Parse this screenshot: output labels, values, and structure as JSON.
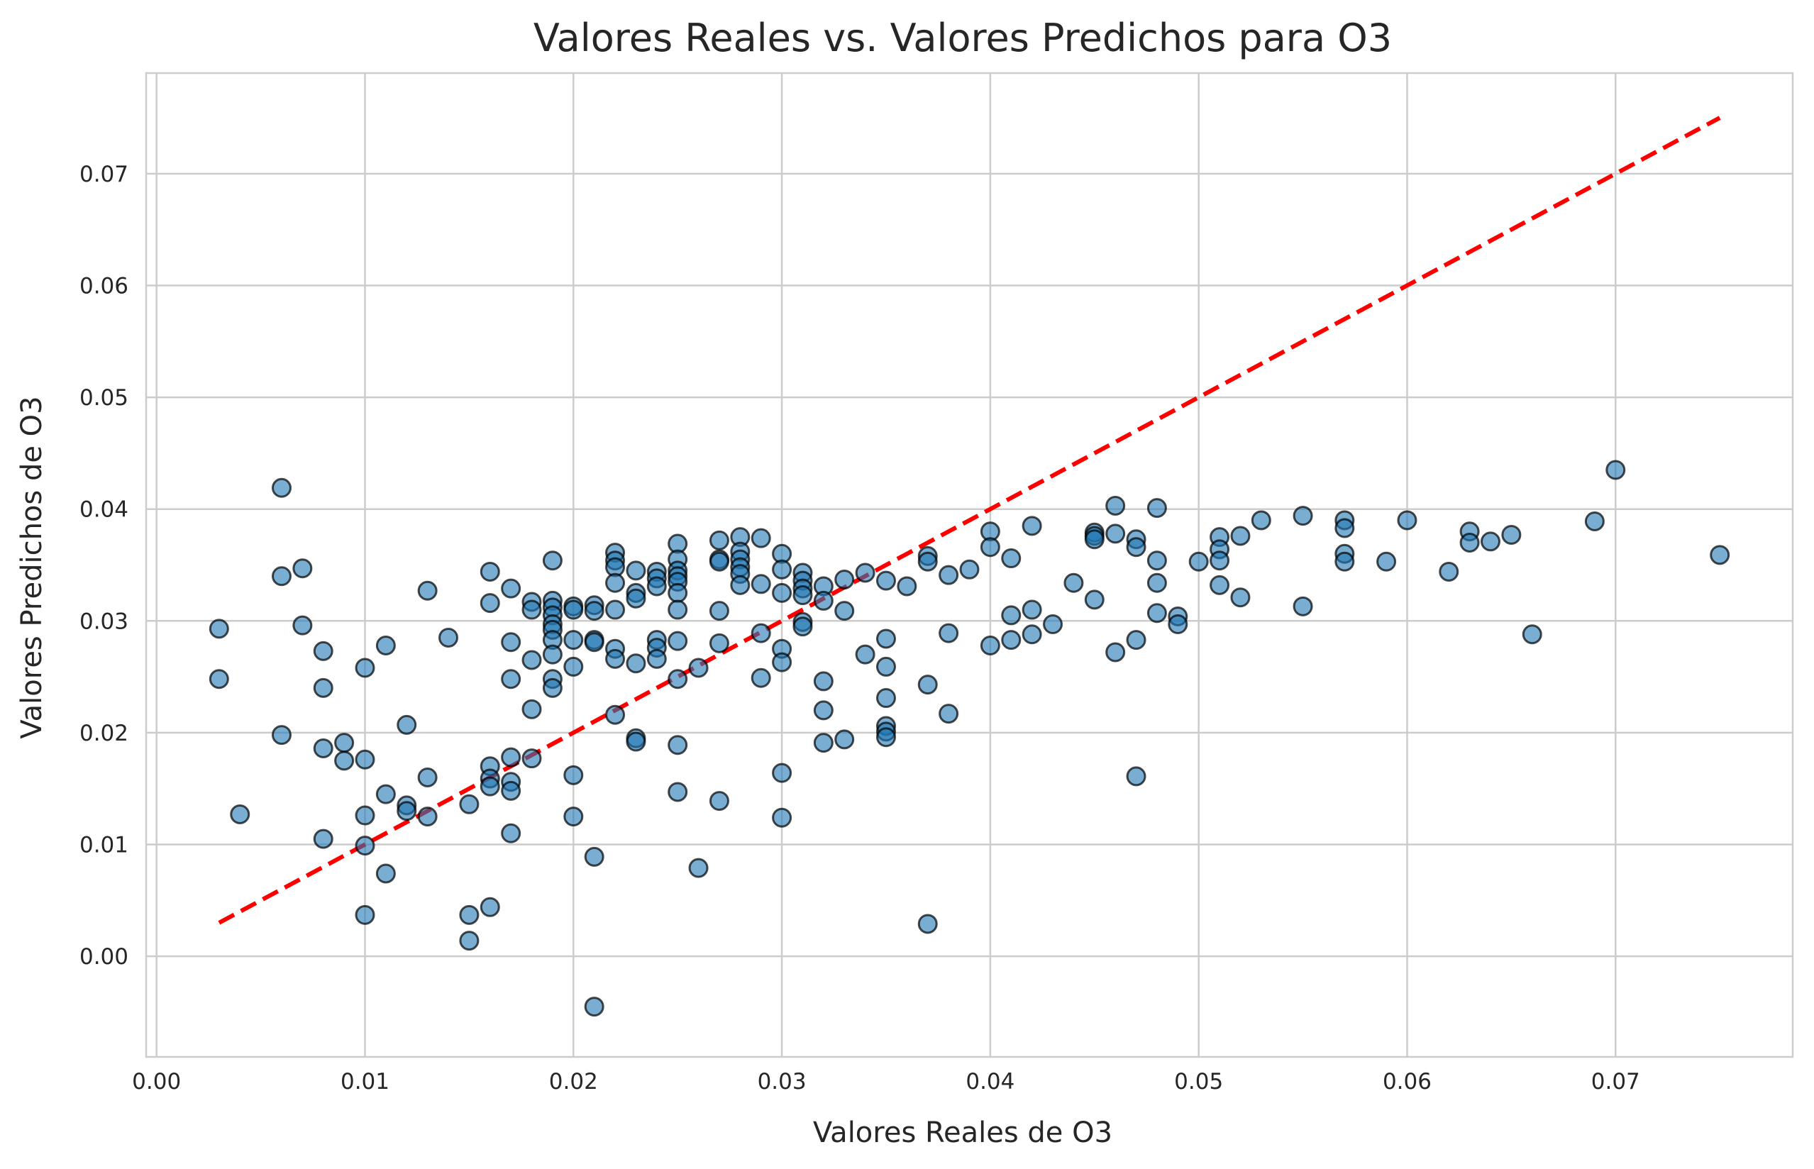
{
  "chart_data": {
    "type": "scatter",
    "title": "Valores Reales vs. Valores Predichos para O3",
    "xlabel": "Valores Reales de O3",
    "ylabel": "Valores Predichos de O3",
    "xlim": [
      -0.0005,
      0.0785
    ],
    "ylim": [
      -0.009,
      0.079
    ],
    "grid": true,
    "x_ticks": [
      "0.00",
      "0.01",
      "0.02",
      "0.03",
      "0.04",
      "0.05",
      "0.06",
      "0.07"
    ],
    "x_tick_values": [
      0.0,
      0.01,
      0.02,
      0.03,
      0.04,
      0.05,
      0.06,
      0.07
    ],
    "y_ticks": [
      "0.00",
      "0.01",
      "0.02",
      "0.03",
      "0.04",
      "0.05",
      "0.06",
      "0.07"
    ],
    "y_tick_values": [
      0.0,
      0.01,
      0.02,
      0.03,
      0.04,
      0.05,
      0.06,
      0.07
    ],
    "reference_line": {
      "x": [
        0.003,
        0.075
      ],
      "y": [
        0.003,
        0.075
      ],
      "color": "#ff0000",
      "style": "dashed"
    },
    "point_color": "#1f77b4",
    "series": [
      {
        "x": [
          0.003,
          0.003,
          0.004,
          0.006,
          0.006,
          0.006,
          0.007,
          0.007,
          0.008,
          0.008,
          0.008,
          0.008,
          0.009,
          0.009,
          0.01,
          0.01,
          0.01,
          0.01,
          0.01,
          0.011,
          0.011,
          0.011,
          0.012,
          0.012,
          0.012,
          0.013,
          0.013,
          0.013,
          0.014,
          0.015,
          0.015,
          0.015,
          0.016,
          0.016,
          0.016,
          0.016,
          0.016,
          0.016,
          0.017,
          0.017,
          0.017,
          0.017,
          0.017,
          0.017,
          0.017,
          0.018,
          0.018,
          0.018,
          0.018,
          0.018,
          0.019,
          0.019,
          0.019,
          0.019,
          0.019,
          0.019,
          0.019,
          0.019,
          0.019,
          0.019,
          0.02,
          0.02,
          0.02,
          0.02,
          0.02,
          0.02,
          0.021,
          0.021,
          0.021,
          0.021,
          0.021,
          0.021,
          0.022,
          0.022,
          0.022,
          0.022,
          0.022,
          0.022,
          0.022,
          0.022,
          0.023,
          0.023,
          0.023,
          0.023,
          0.023,
          0.023,
          0.024,
          0.024,
          0.024,
          0.024,
          0.024,
          0.024,
          0.025,
          0.025,
          0.025,
          0.025,
          0.025,
          0.025,
          0.025,
          0.025,
          0.025,
          0.025,
          0.025,
          0.026,
          0.026,
          0.027,
          0.027,
          0.027,
          0.027,
          0.027,
          0.027,
          0.028,
          0.028,
          0.028,
          0.028,
          0.028,
          0.028,
          0.029,
          0.029,
          0.029,
          0.029,
          0.03,
          0.03,
          0.03,
          0.03,
          0.03,
          0.03,
          0.03,
          0.031,
          0.031,
          0.031,
          0.031,
          0.031,
          0.031,
          0.032,
          0.032,
          0.032,
          0.032,
          0.032,
          0.033,
          0.033,
          0.033,
          0.034,
          0.034,
          0.035,
          0.035,
          0.035,
          0.035,
          0.035,
          0.035,
          0.035,
          0.036,
          0.037,
          0.037,
          0.037,
          0.037,
          0.038,
          0.038,
          0.038,
          0.039,
          0.04,
          0.04,
          0.04,
          0.041,
          0.041,
          0.041,
          0.042,
          0.042,
          0.042,
          0.043,
          0.044,
          0.045,
          0.045,
          0.045,
          0.045,
          0.046,
          0.046,
          0.046,
          0.047,
          0.047,
          0.047,
          0.047,
          0.048,
          0.048,
          0.048,
          0.048,
          0.049,
          0.049,
          0.05,
          0.051,
          0.051,
          0.051,
          0.051,
          0.052,
          0.052,
          0.053,
          0.055,
          0.055,
          0.057,
          0.057,
          0.057,
          0.057,
          0.059,
          0.06,
          0.062,
          0.063,
          0.063,
          0.064,
          0.065,
          0.066,
          0.069,
          0.07,
          0.075
        ],
        "y": [
          0.0293,
          0.0248,
          0.0127,
          0.0419,
          0.034,
          0.0198,
          0.0347,
          0.0296,
          0.0273,
          0.024,
          0.0186,
          0.0105,
          0.0191,
          0.0175,
          0.0258,
          0.0176,
          0.0126,
          0.0099,
          0.0037,
          0.0278,
          0.0145,
          0.0074,
          0.0207,
          0.0135,
          0.013,
          0.0327,
          0.016,
          0.0125,
          0.0285,
          0.0136,
          0.0037,
          0.0014,
          0.0344,
          0.0316,
          0.017,
          0.0159,
          0.0152,
          0.0044,
          0.0329,
          0.0281,
          0.0248,
          0.0178,
          0.0156,
          0.0148,
          0.011,
          0.0317,
          0.031,
          0.0265,
          0.0221,
          0.0177,
          0.0354,
          0.0318,
          0.0312,
          0.0305,
          0.0297,
          0.0292,
          0.0283,
          0.027,
          0.0248,
          0.024,
          0.0313,
          0.031,
          0.0283,
          0.0259,
          0.0162,
          0.0125,
          0.0314,
          0.0309,
          0.0283,
          0.0281,
          0.0089,
          -0.0045,
          0.0361,
          0.0354,
          0.0348,
          0.0334,
          0.031,
          0.0275,
          0.0266,
          0.0216,
          0.0345,
          0.0325,
          0.032,
          0.0262,
          0.0195,
          0.0192,
          0.0344,
          0.0338,
          0.0331,
          0.0283,
          0.0276,
          0.0266,
          0.0369,
          0.0355,
          0.0345,
          0.034,
          0.0335,
          0.0325,
          0.031,
          0.0282,
          0.0248,
          0.0189,
          0.0147,
          0.0258,
          0.0079,
          0.0372,
          0.0355,
          0.0353,
          0.0309,
          0.028,
          0.0139,
          0.0375,
          0.0362,
          0.0355,
          0.0348,
          0.0342,
          0.0332,
          0.0374,
          0.0333,
          0.0289,
          0.0249,
          0.036,
          0.0346,
          0.0325,
          0.0275,
          0.0263,
          0.0164,
          0.0124,
          0.0343,
          0.0336,
          0.0329,
          0.0323,
          0.0299,
          0.0295,
          0.0331,
          0.0318,
          0.0246,
          0.022,
          0.0191,
          0.0337,
          0.0309,
          0.0194,
          0.0343,
          0.027,
          0.0336,
          0.0284,
          0.0259,
          0.0231,
          0.0206,
          0.0201,
          0.0196,
          0.0331,
          0.0358,
          0.0353,
          0.0243,
          0.0029,
          0.0341,
          0.0289,
          0.0217,
          0.0346,
          0.038,
          0.0366,
          0.0278,
          0.0356,
          0.0305,
          0.0283,
          0.0385,
          0.031,
          0.0288,
          0.0297,
          0.0334,
          0.0379,
          0.0376,
          0.0373,
          0.0319,
          0.0403,
          0.0378,
          0.0272,
          0.0373,
          0.0366,
          0.0283,
          0.0161,
          0.0401,
          0.0354,
          0.0334,
          0.0307,
          0.0304,
          0.0297,
          0.0353,
          0.0375,
          0.0364,
          0.0354,
          0.0332,
          0.0376,
          0.0321,
          0.039,
          0.0394,
          0.0313,
          0.039,
          0.0383,
          0.036,
          0.0353,
          0.0353,
          0.039,
          0.0344,
          0.038,
          0.037,
          0.0371,
          0.0377,
          0.0288,
          0.0389,
          0.0435,
          0.0359
        ]
      }
    ]
  }
}
